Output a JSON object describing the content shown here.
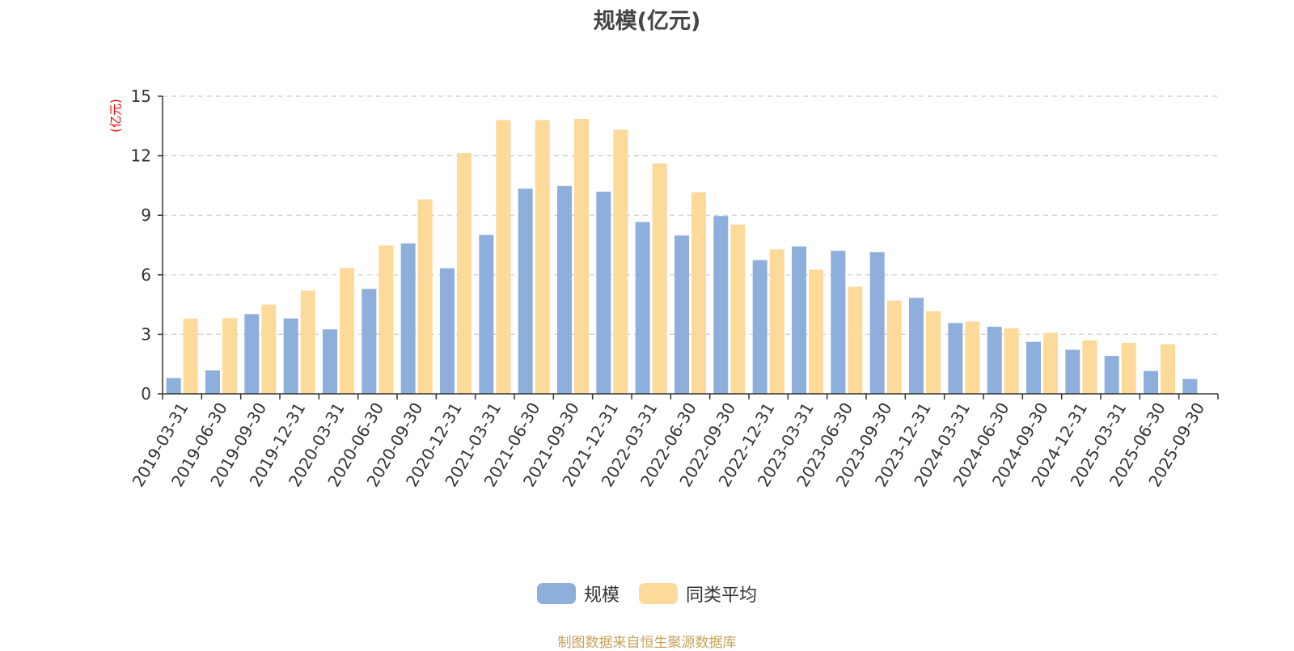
{
  "chart_data": {
    "type": "bar",
    "title": "规模(亿元)",
    "ylabel": "(亿元)",
    "xlabel": "",
    "ylim": [
      0,
      15
    ],
    "yticks": [
      0,
      3,
      6,
      9,
      12,
      15
    ],
    "grid": true,
    "legend_position": "bottom",
    "categories": [
      "2019-03-31",
      "2019-06-30",
      "2019-09-30",
      "2019-12-31",
      "2020-03-31",
      "2020-06-30",
      "2020-09-30",
      "2020-12-31",
      "2021-03-31",
      "2021-06-30",
      "2021-09-30",
      "2021-12-31",
      "2022-03-31",
      "2022-06-30",
      "2022-09-30",
      "2022-12-31",
      "2023-03-31",
      "2023-06-30",
      "2023-09-30",
      "2023-12-31",
      "2024-03-31",
      "2024-06-30",
      "2024-09-30",
      "2024-12-31",
      "2025-03-31",
      "2025-06-30",
      "2025-09-30"
    ],
    "series": [
      {
        "name": "规模",
        "color": "#8eaedb",
        "values": [
          0.8,
          1.18,
          4.02,
          3.8,
          3.25,
          5.29,
          7.58,
          6.33,
          8.01,
          10.34,
          10.48,
          10.19,
          8.66,
          7.98,
          8.96,
          6.74,
          7.43,
          7.21,
          7.14,
          4.84,
          3.57,
          3.38,
          2.62,
          2.22,
          1.91,
          1.15,
          0.75
        ]
      },
      {
        "name": "同类平均",
        "color": "#fdd99a",
        "values": [
          3.79,
          3.82,
          4.5,
          5.2,
          6.34,
          7.48,
          9.8,
          12.14,
          13.8,
          13.8,
          13.86,
          13.31,
          11.61,
          10.16,
          8.53,
          7.28,
          6.26,
          5.4,
          4.7,
          4.16,
          3.65,
          3.3,
          3.07,
          2.69,
          2.57,
          2.5,
          null
        ]
      }
    ],
    "source": "制图数据来自恒生聚源数据库",
    "axis_color": "#333333",
    "grid_color": "#cccccc",
    "ylabel_color": "#ff0000"
  }
}
